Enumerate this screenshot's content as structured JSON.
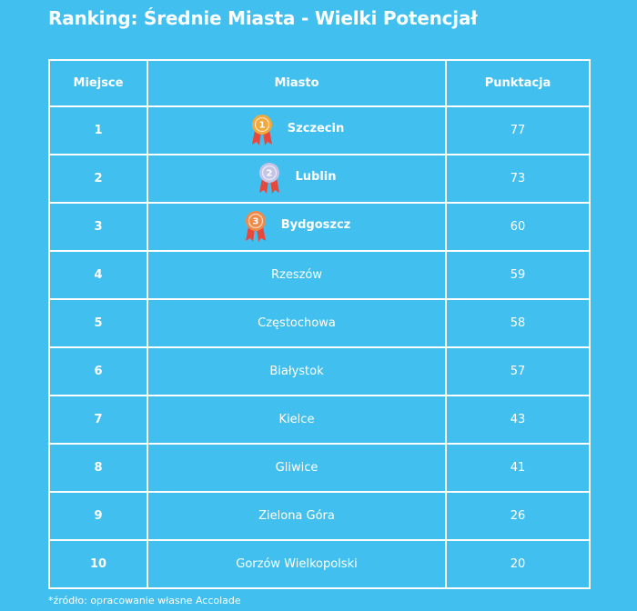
{
  "title": "Ranking: Średnie Miasta - Wielki Potencjał",
  "colors": {
    "background": "#41c0ef",
    "text": "#ffffff",
    "medal_gold": "#f2a83a",
    "medal_silver": "#c3c4e6",
    "medal_bronze": "#f08a48",
    "ribbon": "#e8473c"
  },
  "chart_data": {
    "type": "table",
    "columns": [
      "Miejsce",
      "Miasto",
      "Punktacja"
    ],
    "rows": [
      {
        "place": "1",
        "city": "Szczecin",
        "score": "77",
        "medal": "gold-medal-icon",
        "medal_num": "1"
      },
      {
        "place": "2",
        "city": "Lublin",
        "score": "73",
        "medal": "silver-medal-icon",
        "medal_num": "2"
      },
      {
        "place": "3",
        "city": "Bydgoszcz",
        "score": "60",
        "medal": "bronze-medal-icon",
        "medal_num": "3"
      },
      {
        "place": "4",
        "city": "Rzeszów",
        "score": "59"
      },
      {
        "place": "5",
        "city": "Częstochowa",
        "score": "58"
      },
      {
        "place": "6",
        "city": "Białystok",
        "score": "57"
      },
      {
        "place": "7",
        "city": "Kielce",
        "score": "43"
      },
      {
        "place": "8",
        "city": "Gliwice",
        "score": "41"
      },
      {
        "place": "9",
        "city": "Zielona Góra",
        "score": "26"
      },
      {
        "place": "10",
        "city": "Gorzów Wielkopolski",
        "score": "20"
      }
    ]
  },
  "footnote": "*źródło: opracowanie własne Accolade"
}
